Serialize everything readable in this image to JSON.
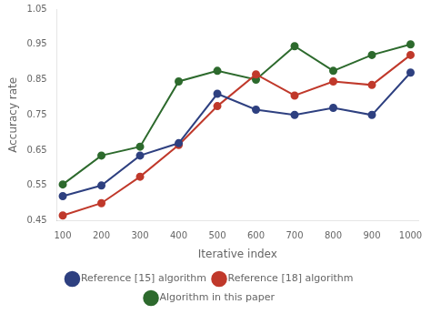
{
  "chart_data": {
    "type": "line",
    "x": [
      100,
      200,
      300,
      400,
      500,
      600,
      700,
      800,
      900,
      1000
    ],
    "series": [
      {
        "name": "Reference [15] algorithm",
        "color": "#2e4080",
        "values": [
          0.52,
          0.55,
          0.635,
          0.67,
          0.81,
          0.765,
          0.75,
          0.77,
          0.75,
          0.87
        ]
      },
      {
        "name": "Reference [18] algorithm",
        "color": "#c0392b",
        "values": [
          0.465,
          0.5,
          0.575,
          0.665,
          0.775,
          0.865,
          0.805,
          0.845,
          0.835,
          0.92
        ]
      },
      {
        "name": "Algorithm in this paper",
        "color": "#2d6a2d",
        "values": [
          0.553,
          0.635,
          0.66,
          0.845,
          0.875,
          0.85,
          0.945,
          0.875,
          0.92,
          0.95
        ]
      }
    ],
    "xlabel": "Iterative index",
    "ylabel": "Accuracy rate",
    "xlim": [
      85,
      1020
    ],
    "ylim": [
      0.45,
      1.05
    ],
    "xticks": [
      100,
      200,
      300,
      400,
      500,
      600,
      700,
      800,
      900,
      1000
    ],
    "yticks": [
      0.45,
      0.55,
      0.65,
      0.75,
      0.85,
      0.95,
      1.05
    ],
    "grid": false,
    "legend": "bottom",
    "marker": "circle"
  }
}
